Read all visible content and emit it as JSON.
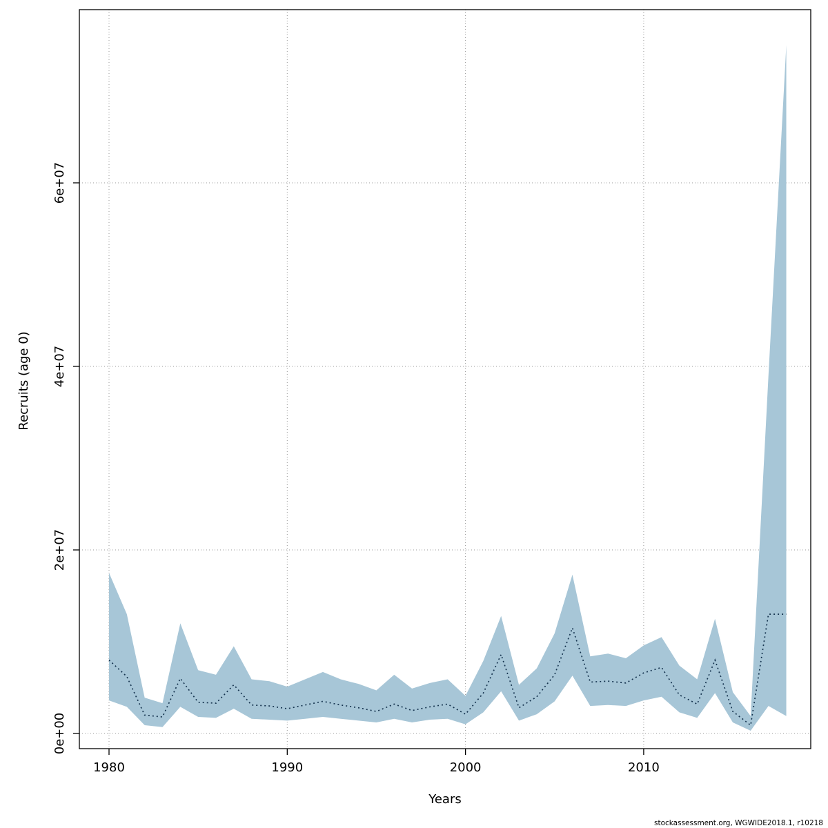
{
  "caption": "stockassessment.org, WGWIDE2018.1, r10218",
  "axes": {
    "xlabel": "Years",
    "ylabel": "Recruits (age 0)",
    "x_ticks": [
      {
        "value": 1980,
        "label": "1980"
      },
      {
        "value": 1990,
        "label": "1990"
      },
      {
        "value": 2000,
        "label": "2000"
      },
      {
        "value": 2010,
        "label": "2010"
      }
    ],
    "y_ticks": [
      {
        "value": 0,
        "label": "0e+00"
      },
      {
        "value": 20000000,
        "label": "2e+07"
      },
      {
        "value": 40000000,
        "label": "4e+07"
      },
      {
        "value": 60000000,
        "label": "6e+07"
      }
    ]
  },
  "colors": {
    "band": "#a7c6d7",
    "line": "#16344f",
    "grid": "#999999",
    "frame": "#000000"
  },
  "chart_data": {
    "type": "area",
    "title": "",
    "xlabel": "Years",
    "ylabel": "Recruits (age 0)",
    "xlim": [
      1978.3,
      2019.4
    ],
    "ylim": [
      0,
      77000000
    ],
    "grid": true,
    "legend": false,
    "x": [
      1980,
      1981,
      1982,
      1983,
      1984,
      1985,
      1986,
      1987,
      1988,
      1989,
      1990,
      1991,
      1992,
      1993,
      1994,
      1995,
      1996,
      1997,
      1998,
      1999,
      2000,
      2001,
      2002,
      2003,
      2004,
      2005,
      2006,
      2007,
      2008,
      2009,
      2010,
      2011,
      2012,
      2013,
      2014,
      2015,
      2016,
      2017,
      2018
    ],
    "series": [
      {
        "name": "recruits_median",
        "style": "dotted-line",
        "values": [
          8000000,
          6200000,
          2000000,
          1800000,
          6000000,
          3400000,
          3300000,
          5300000,
          3100000,
          3000000,
          2700000,
          3100000,
          3500000,
          3100000,
          2800000,
          2400000,
          3200000,
          2500000,
          2900000,
          3200000,
          2100000,
          4400000,
          8600000,
          2800000,
          4000000,
          6400000,
          11500000,
          5600000,
          5700000,
          5500000,
          6600000,
          7200000,
          4200000,
          3200000,
          8000000,
          2400000,
          900000,
          13000000,
          13000000
        ]
      },
      {
        "name": "ci_lower",
        "style": "band-lower-edge",
        "values": [
          3600000,
          2900000,
          900000,
          700000,
          2900000,
          1800000,
          1700000,
          2700000,
          1600000,
          1500000,
          1400000,
          1600000,
          1800000,
          1600000,
          1400000,
          1200000,
          1600000,
          1200000,
          1500000,
          1600000,
          1000000,
          2300000,
          4600000,
          1400000,
          2100000,
          3500000,
          6300000,
          3000000,
          3100000,
          3000000,
          3600000,
          4000000,
          2300000,
          1700000,
          4400000,
          1200000,
          300000,
          3000000,
          1900000
        ]
      },
      {
        "name": "ci_upper",
        "style": "band-upper-edge",
        "values": [
          17500000,
          13000000,
          3900000,
          3300000,
          12000000,
          6900000,
          6400000,
          9500000,
          5900000,
          5700000,
          5100000,
          5900000,
          6700000,
          5900000,
          5400000,
          4700000,
          6400000,
          4900000,
          5500000,
          5900000,
          4100000,
          7900000,
          12800000,
          5300000,
          7100000,
          10900000,
          17300000,
          8400000,
          8700000,
          8200000,
          9600000,
          10500000,
          7400000,
          5900000,
          12500000,
          4500000,
          1900000,
          39000000,
          75000000
        ]
      }
    ]
  }
}
